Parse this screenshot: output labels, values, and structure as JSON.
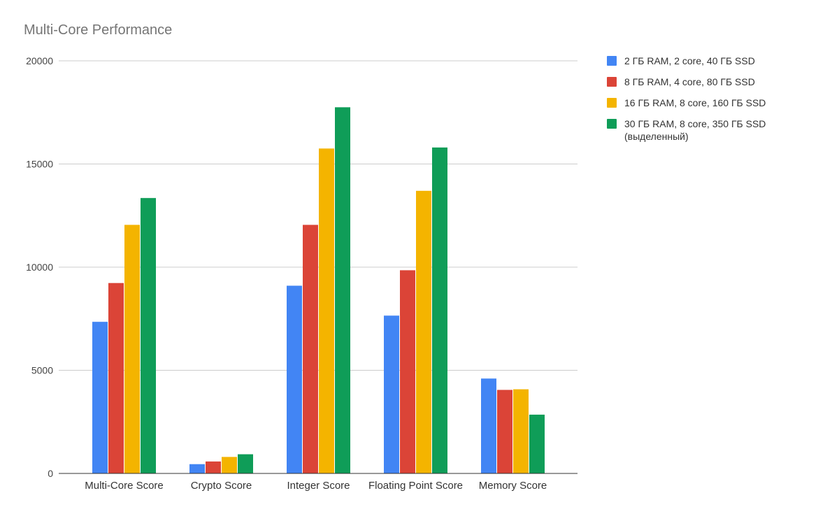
{
  "chart_data": {
    "type": "bar",
    "title": "Multi-Core Performance",
    "xlabel": "",
    "ylabel": "",
    "ylim": [
      0,
      20000
    ],
    "yticks": [
      0,
      5000,
      10000,
      15000,
      20000
    ],
    "grid": true,
    "legend_position": "right",
    "categories": [
      "Multi-Core Score",
      "Crypto Score",
      "Integer Score",
      "Floating Point Score",
      "Memory Score"
    ],
    "series": [
      {
        "name": "2 ГБ RAM, 2 core, 40 ГБ SSD",
        "color": "#4285f4",
        "values": [
          7350,
          450,
          9100,
          7650,
          4600
        ]
      },
      {
        "name": "8 ГБ RAM, 4 core, 80 ГБ SSD",
        "color": "#db4437",
        "values": [
          9230,
          580,
          12050,
          9850,
          4050
        ]
      },
      {
        "name": "16 ГБ RAM, 8 core, 160 ГБ SSD",
        "color": "#f4b400",
        "values": [
          12050,
          800,
          15750,
          13700,
          4080
        ]
      },
      {
        "name": "30 ГБ RAM, 8 core, 350 ГБ SSD",
        "name_line2": "(выделенный)",
        "color": "#0f9d58",
        "values": [
          13350,
          930,
          17750,
          15800,
          2850
        ]
      }
    ]
  }
}
